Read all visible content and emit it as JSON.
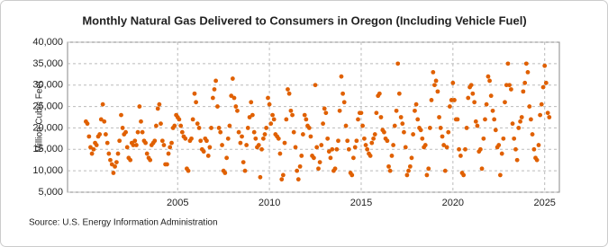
{
  "chart_data": {
    "type": "scatter",
    "title": "Monthly Natural Gas Delivered to Consumers in Oregon (Including Vehicle Fuel)",
    "ylabel": "Million Cubic Feet",
    "source": "Source: U.S. Energy Information Administration",
    "color": "#e06000",
    "grid": true,
    "xlim": [
      1999,
      2025.8
    ],
    "xticks": [
      2005,
      2010,
      2015,
      2020,
      2025
    ],
    "ylim": [
      5000,
      40000
    ],
    "yticks": [
      {
        "value": 5000,
        "label": "5,000"
      },
      {
        "value": 10000,
        "label": "10,000"
      },
      {
        "value": 15000,
        "label": "15,000"
      },
      {
        "value": 20000,
        "label": "20,000"
      },
      {
        "value": 25000,
        "label": "25,000"
      },
      {
        "value": 30000,
        "label": "30,000"
      },
      {
        "value": 35000,
        "label": "35,000"
      },
      {
        "value": 40000,
        "label": "40,000"
      }
    ],
    "x": [
      2000.0,
      2000.08,
      2000.17,
      2000.25,
      2000.33,
      2000.42,
      2000.5,
      2000.58,
      2000.67,
      2000.75,
      2000.83,
      2000.92,
      2001.0,
      2001.08,
      2001.17,
      2001.25,
      2001.33,
      2001.42,
      2001.5,
      2001.58,
      2001.67,
      2001.75,
      2001.83,
      2001.92,
      2002.0,
      2002.08,
      2002.17,
      2002.25,
      2002.33,
      2002.42,
      2002.5,
      2002.58,
      2002.67,
      2002.75,
      2002.83,
      2002.92,
      2003.0,
      2003.08,
      2003.17,
      2003.25,
      2003.33,
      2003.42,
      2003.5,
      2003.58,
      2003.67,
      2003.75,
      2003.83,
      2003.92,
      2004.0,
      2004.08,
      2004.17,
      2004.25,
      2004.33,
      2004.42,
      2004.5,
      2004.58,
      2004.67,
      2004.75,
      2004.83,
      2004.92,
      2005.0,
      2005.08,
      2005.17,
      2005.25,
      2005.33,
      2005.42,
      2005.5,
      2005.58,
      2005.67,
      2005.75,
      2005.83,
      2005.92,
      2006.0,
      2006.08,
      2006.17,
      2006.25,
      2006.33,
      2006.42,
      2006.5,
      2006.58,
      2006.67,
      2006.75,
      2006.83,
      2006.92,
      2007.0,
      2007.08,
      2007.17,
      2007.25,
      2007.33,
      2007.42,
      2007.5,
      2007.58,
      2007.67,
      2007.75,
      2007.83,
      2007.92,
      2008.0,
      2008.08,
      2008.17,
      2008.25,
      2008.33,
      2008.42,
      2008.5,
      2008.58,
      2008.67,
      2008.75,
      2008.83,
      2008.92,
      2009.0,
      2009.08,
      2009.17,
      2009.25,
      2009.33,
      2009.42,
      2009.5,
      2009.58,
      2009.67,
      2009.75,
      2009.83,
      2009.92,
      2010.0,
      2010.08,
      2010.17,
      2010.25,
      2010.33,
      2010.42,
      2010.5,
      2010.58,
      2010.67,
      2010.75,
      2010.83,
      2010.92,
      2011.0,
      2011.08,
      2011.17,
      2011.25,
      2011.33,
      2011.42,
      2011.5,
      2011.58,
      2011.67,
      2011.75,
      2011.83,
      2011.92,
      2012.0,
      2012.08,
      2012.17,
      2012.25,
      2012.33,
      2012.42,
      2012.5,
      2012.58,
      2012.67,
      2012.75,
      2012.83,
      2012.92,
      2013.0,
      2013.08,
      2013.17,
      2013.25,
      2013.33,
      2013.42,
      2013.5,
      2013.58,
      2013.67,
      2013.75,
      2013.83,
      2013.92,
      2014.0,
      2014.08,
      2014.17,
      2014.25,
      2014.33,
      2014.42,
      2014.5,
      2014.58,
      2014.67,
      2014.75,
      2014.83,
      2014.92,
      2015.0,
      2015.08,
      2015.17,
      2015.25,
      2015.33,
      2015.42,
      2015.5,
      2015.58,
      2015.67,
      2015.75,
      2015.83,
      2015.92,
      2016.0,
      2016.08,
      2016.17,
      2016.25,
      2016.33,
      2016.42,
      2016.5,
      2016.58,
      2016.67,
      2016.75,
      2016.83,
      2016.92,
      2017.0,
      2017.08,
      2017.17,
      2017.25,
      2017.33,
      2017.42,
      2017.5,
      2017.58,
      2017.67,
      2017.75,
      2017.83,
      2017.92,
      2018.0,
      2018.08,
      2018.17,
      2018.25,
      2018.33,
      2018.42,
      2018.5,
      2018.58,
      2018.67,
      2018.75,
      2018.83,
      2018.92,
      2019.0,
      2019.08,
      2019.17,
      2019.25,
      2019.33,
      2019.42,
      2019.5,
      2019.58,
      2019.67,
      2019.75,
      2019.83,
      2019.92,
      2020.0,
      2020.08,
      2020.17,
      2020.25,
      2020.33,
      2020.42,
      2020.5,
      2020.58,
      2020.67,
      2020.75,
      2020.83,
      2020.92,
      2021.0,
      2021.08,
      2021.17,
      2021.25,
      2021.33,
      2021.42,
      2021.5,
      2021.58,
      2021.67,
      2021.75,
      2021.83,
      2021.92,
      2022.0,
      2022.08,
      2022.17,
      2022.25,
      2022.33,
      2022.42,
      2022.5,
      2022.58,
      2022.67,
      2022.75,
      2022.83,
      2022.92,
      2023.0,
      2023.08,
      2023.17,
      2023.25,
      2023.33,
      2023.42,
      2023.5,
      2023.58,
      2023.67,
      2023.75,
      2023.83,
      2023.92,
      2024.0,
      2024.08,
      2024.17,
      2024.25,
      2024.33,
      2024.42,
      2024.5,
      2024.58,
      2024.67,
      2024.75,
      2024.83,
      2024.92,
      2025.0,
      2025.08,
      2025.17,
      2025.25
    ],
    "values": [
      21500,
      21000,
      18000,
      15500,
      14000,
      15000,
      16500,
      16000,
      18000,
      18500,
      22000,
      25500,
      21500,
      18500,
      16500,
      14000,
      12500,
      11500,
      9500,
      11000,
      12000,
      14000,
      17000,
      23000,
      20000,
      18500,
      19000,
      15500,
      13000,
      12500,
      16500,
      16000,
      17000,
      16000,
      19000,
      25000,
      21500,
      19000,
      17000,
      16500,
      14000,
      13000,
      12500,
      16000,
      16500,
      17000,
      20500,
      24500,
      25500,
      21000,
      17000,
      16000,
      11500,
      11500,
      14000,
      15500,
      16500,
      20000,
      20500,
      23000,
      22500,
      22000,
      20500,
      19000,
      18000,
      17500,
      10500,
      10000,
      17000,
      17500,
      22000,
      28000,
      26000,
      21000,
      20000,
      17000,
      15000,
      14500,
      17500,
      17000,
      13500,
      15500,
      20000,
      27000,
      29000,
      31000,
      25000,
      20000,
      19000,
      16000,
      10000,
      9500,
      13000,
      17500,
      20500,
      27500,
      31500,
      27000,
      25000,
      24000,
      19000,
      16500,
      18000,
      12000,
      10000,
      16000,
      20000,
      22500,
      26000,
      23000,
      19000,
      17500,
      15500,
      16000,
      8500,
      15000,
      17500,
      18500,
      20000,
      27000,
      25500,
      21000,
      23000,
      22000,
      18500,
      18000,
      17500,
      14000,
      8000,
      9000,
      16500,
      22000,
      29000,
      28000,
      24000,
      23000,
      19000,
      15500,
      10000,
      8000,
      11000,
      13500,
      18500,
      23000,
      22000,
      20500,
      20000,
      18000,
      13500,
      13000,
      30000,
      15500,
      10500,
      12000,
      16000,
      21000,
      24500,
      23500,
      17500,
      14500,
      13000,
      15000,
      10000,
      10500,
      15000,
      17000,
      24000,
      32000,
      28000,
      26000,
      20500,
      17000,
      15000,
      9500,
      9000,
      13000,
      15500,
      17000,
      22000,
      23500,
      23500,
      20500,
      17500,
      16000,
      15000,
      14000,
      13500,
      16500,
      17500,
      18500,
      23500,
      27500,
      28000,
      22500,
      19500,
      19000,
      17500,
      17000,
      11000,
      10000,
      13500,
      16000,
      20500,
      24000,
      35000,
      28000,
      22500,
      21000,
      19000,
      15500,
      9000,
      10000,
      11000,
      13000,
      18500,
      24000,
      25500,
      22000,
      20000,
      19500,
      17500,
      15500,
      16000,
      9000,
      10500,
      20000,
      26500,
      33000,
      30000,
      31000,
      28500,
      22500,
      20000,
      18000,
      16000,
      10000,
      15500,
      19000,
      25000,
      26500,
      30500,
      26500,
      22000,
      22000,
      15000,
      13500,
      9500,
      9000,
      15000,
      20000,
      27000,
      29500,
      30000,
      28000,
      26000,
      21500,
      20500,
      14500,
      15000,
      10500,
      17500,
      22000,
      25500,
      32000,
      31000,
      27500,
      24000,
      22000,
      19500,
      15500,
      16000,
      9000,
      14000,
      17500,
      26000,
      30000,
      35000,
      30000,
      29000,
      21000,
      17500,
      15000,
      12500,
      20000,
      21500,
      22500,
      28500,
      30500,
      35000,
      33000,
      25000,
      22000,
      18500,
      15000,
      13000,
      12500,
      16000,
      23000,
      25500,
      29500,
      34500,
      30500,
      23500,
      22500
    ]
  }
}
